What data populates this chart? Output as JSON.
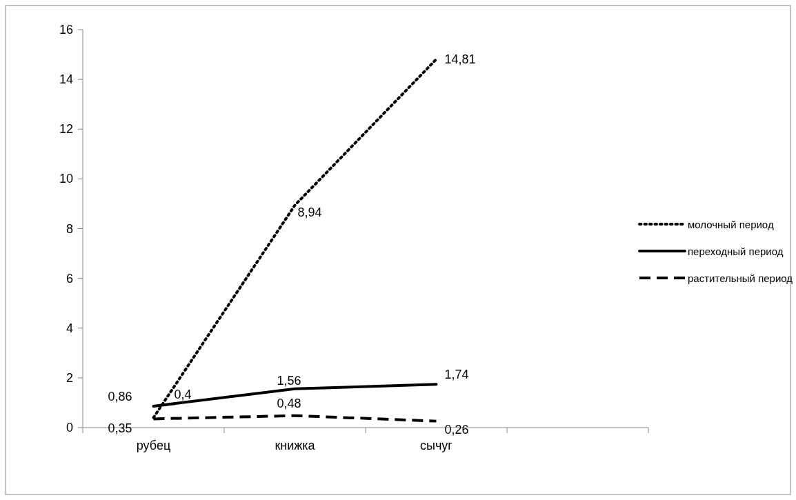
{
  "chart_data": {
    "type": "line",
    "categories": [
      "рубец",
      "книжка",
      "сычуг",
      null
    ],
    "series": [
      {
        "name": "молочный период",
        "color": "#000000",
        "line_style": "dotted",
        "values": [
          0.4,
          8.94,
          14.81,
          null
        ],
        "value_labels": [
          "0,4",
          "8,94",
          "14,81",
          null
        ]
      },
      {
        "name": "переходный период",
        "color": "#000000",
        "line_style": "solid",
        "values": [
          0.86,
          1.56,
          1.74,
          null
        ],
        "value_labels": [
          "0,86",
          "1,56",
          "1,74",
          null
        ]
      },
      {
        "name": "растительный период",
        "color": "#000000",
        "line_style": "dashed",
        "values": [
          0.35,
          0.48,
          0.26,
          null
        ],
        "value_labels": [
          "0,35",
          "0,48",
          "0,26",
          null
        ]
      }
    ],
    "ylim": [
      0,
      16
    ],
    "yticks": [
      0,
      2,
      4,
      6,
      8,
      10,
      12,
      14,
      16
    ],
    "grid": false,
    "legend": "right",
    "marker": "none"
  }
}
